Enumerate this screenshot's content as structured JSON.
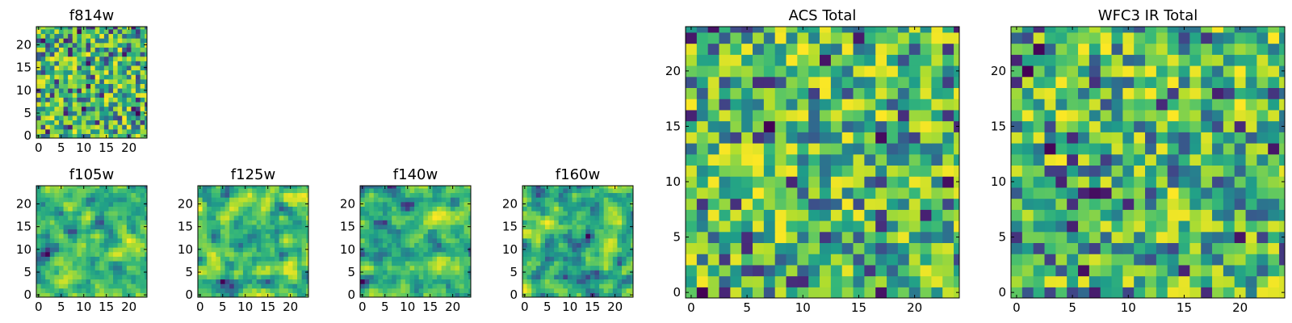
{
  "chart_data": [
    {
      "id": "f814w",
      "type": "heatmap",
      "title": "f814w",
      "grid_size": 25,
      "colormap": "viridis",
      "seed": 814,
      "smooth": 0,
      "xticks": [
        "0",
        "5",
        "10",
        "15",
        "20"
      ],
      "yticks": [
        "0",
        "5",
        "10",
        "15",
        "20"
      ]
    },
    {
      "id": "f105w",
      "type": "heatmap",
      "title": "f105w",
      "grid_size": 25,
      "colormap": "viridis",
      "seed": 105,
      "smooth": 1,
      "xticks": [
        "0",
        "5",
        "10",
        "15",
        "20"
      ],
      "yticks": [
        "0",
        "5",
        "10",
        "15",
        "20"
      ]
    },
    {
      "id": "f125w",
      "type": "heatmap",
      "title": "f125w",
      "grid_size": 25,
      "colormap": "viridis",
      "seed": 125,
      "smooth": 1,
      "xticks": [
        "0",
        "5",
        "10",
        "15",
        "20"
      ],
      "yticks": [
        "0",
        "5",
        "10",
        "15",
        "20"
      ]
    },
    {
      "id": "f140w",
      "type": "heatmap",
      "title": "f140w",
      "grid_size": 25,
      "colormap": "viridis",
      "seed": 140,
      "smooth": 1,
      "xticks": [
        "0",
        "5",
        "10",
        "15",
        "20"
      ],
      "yticks": [
        "0",
        "5",
        "10",
        "15",
        "20"
      ]
    },
    {
      "id": "f160w",
      "type": "heatmap",
      "title": "f160w",
      "grid_size": 25,
      "colormap": "viridis",
      "seed": 160,
      "smooth": 1,
      "xticks": [
        "0",
        "5",
        "10",
        "15",
        "20"
      ],
      "yticks": [
        "0",
        "5",
        "10",
        "15",
        "20"
      ]
    },
    {
      "id": "acs",
      "type": "heatmap",
      "title": "ACS Total",
      "grid_size": 25,
      "colormap": "viridis",
      "seed": 901,
      "smooth": 0,
      "xticks": [
        "0",
        "5",
        "10",
        "15",
        "20"
      ],
      "yticks": [
        "0",
        "5",
        "10",
        "15",
        "20"
      ]
    },
    {
      "id": "wfc3",
      "type": "heatmap",
      "title": "WFC3 IR Total",
      "grid_size": 25,
      "colormap": "viridis",
      "seed": 902,
      "smooth": 0,
      "xticks": [
        "0",
        "5",
        "10",
        "15",
        "20"
      ],
      "yticks": [
        "0",
        "5",
        "10",
        "15",
        "20"
      ]
    }
  ]
}
